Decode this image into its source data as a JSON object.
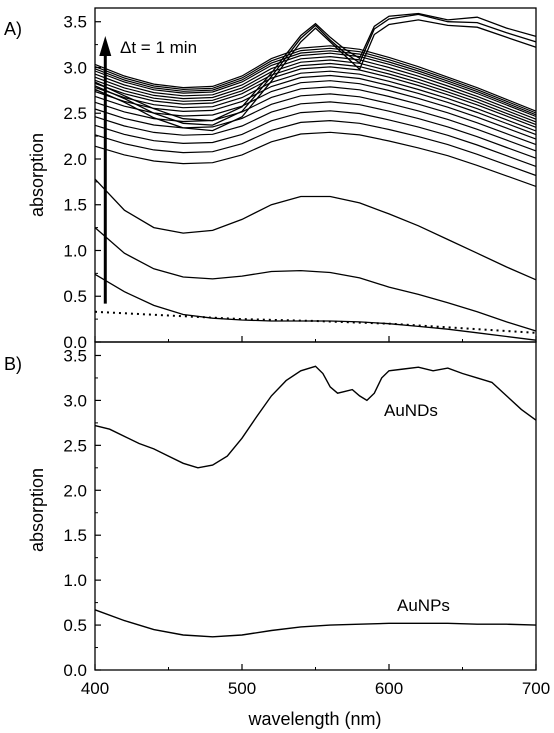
{
  "chart_data": [
    {
      "panel": "A)",
      "type": "line",
      "ylabel": "absorption",
      "xlim": [
        400,
        700
      ],
      "ylim": [
        0,
        3.65
      ],
      "yticks": [
        "0.0",
        "0.5",
        "1.0",
        "1.5",
        "2.0",
        "2.5",
        "3.0",
        "3.5"
      ],
      "annotation": "Δt = 1 min",
      "base_shape": {
        "x": [
          400,
          420,
          440,
          460,
          480,
          500,
          520,
          540,
          560,
          580,
          600,
          620,
          640,
          660,
          680,
          700
        ],
        "y": [
          0.6,
          0.5,
          0.43,
          0.4,
          0.41,
          0.5,
          0.65,
          0.74,
          0.76,
          0.73,
          0.66,
          0.58,
          0.49,
          0.4,
          0.3,
          0.2
        ]
      },
      "series": [
        {
          "x": [
            400,
            420,
            440,
            460,
            480,
            500,
            520,
            540,
            560,
            580,
            600,
            620,
            640,
            660,
            680,
            700
          ],
          "y": [
            0.74,
            0.55,
            0.4,
            0.3,
            0.26,
            0.24,
            0.23,
            0.23,
            0.23,
            0.22,
            0.2,
            0.17,
            0.14,
            0.1,
            0.06,
            0.02
          ]
        },
        {
          "x": [
            400,
            420,
            440,
            460,
            480,
            500,
            520,
            540,
            560,
            580,
            600,
            620,
            640,
            660,
            680,
            700
          ],
          "y": [
            1.25,
            0.97,
            0.8,
            0.71,
            0.69,
            0.72,
            0.77,
            0.78,
            0.76,
            0.7,
            0.6,
            0.52,
            0.43,
            0.33,
            0.22,
            0.12
          ]
        },
        {
          "x": [
            400,
            420,
            440,
            460,
            480,
            500,
            520,
            540,
            560,
            580,
            600,
            620,
            640,
            660,
            680,
            700
          ],
          "y": [
            1.78,
            1.44,
            1.25,
            1.19,
            1.22,
            1.34,
            1.5,
            1.59,
            1.59,
            1.52,
            1.4,
            1.27,
            1.12,
            0.97,
            0.82,
            0.68
          ]
        }
      ],
      "family_levels": [
        1.95,
        2.07,
        2.17,
        2.26,
        2.34,
        2.41,
        2.47,
        2.52,
        2.56,
        2.6,
        2.63,
        2.66,
        2.69,
        2.72,
        2.74,
        2.76,
        2.78
      ],
      "top_curves": [
        {
          "x": [
            400,
            420,
            440,
            460,
            480,
            500,
            520,
            540,
            550,
            560,
            570,
            580,
            590,
            600,
            620,
            640,
            660,
            680,
            700
          ],
          "y": [
            2.76,
            2.62,
            2.45,
            2.34,
            2.31,
            2.46,
            2.85,
            3.28,
            3.43,
            3.28,
            3.13,
            2.98,
            3.36,
            3.47,
            3.52,
            3.46,
            3.44,
            3.33,
            3.22
          ]
        },
        {
          "x": [
            400,
            420,
            440,
            460,
            480,
            500,
            520,
            540,
            550,
            560,
            570,
            580,
            590,
            600,
            620,
            640,
            660,
            680,
            700
          ],
          "y": [
            2.8,
            2.66,
            2.5,
            2.39,
            2.37,
            2.52,
            2.9,
            3.32,
            3.46,
            3.3,
            3.16,
            3.05,
            3.42,
            3.53,
            3.58,
            3.5,
            3.49,
            3.38,
            3.28
          ]
        },
        {
          "x": [
            400,
            420,
            440,
            460,
            480,
            500,
            520,
            540,
            550,
            560,
            570,
            580,
            590,
            600,
            620,
            640,
            660,
            680,
            700
          ],
          "y": [
            2.84,
            2.69,
            2.55,
            2.44,
            2.42,
            2.57,
            2.94,
            3.35,
            3.48,
            3.33,
            3.2,
            3.1,
            3.45,
            3.56,
            3.59,
            3.52,
            3.55,
            3.43,
            3.34
          ]
        }
      ],
      "dotted_series": {
        "x": [
          400,
          450,
          500,
          550,
          600,
          650,
          700
        ],
        "y": [
          0.33,
          0.29,
          0.25,
          0.23,
          0.2,
          0.15,
          0.1
        ]
      },
      "arrow": {
        "x": 407,
        "y_from": 0.42,
        "y_to": 3.3
      }
    },
    {
      "panel": "B)",
      "type": "line",
      "ylabel": "absorption",
      "xlabel": "wavelength (nm)",
      "xlim": [
        400,
        700
      ],
      "ylim": [
        0,
        3.65
      ],
      "xticks": [
        "400",
        "500",
        "600",
        "700"
      ],
      "yticks": [
        "0.0",
        "0.5",
        "1.0",
        "1.5",
        "2.0",
        "2.5",
        "3.0",
        "3.5"
      ],
      "series": [
        {
          "name": "AuNDs",
          "x": [
            400,
            410,
            420,
            430,
            440,
            450,
            460,
            470,
            480,
            490,
            500,
            510,
            520,
            530,
            540,
            550,
            555,
            560,
            565,
            570,
            575,
            580,
            585,
            590,
            595,
            600,
            610,
            620,
            630,
            640,
            650,
            660,
            670,
            680,
            690,
            700
          ],
          "y": [
            2.72,
            2.68,
            2.6,
            2.52,
            2.46,
            2.38,
            2.3,
            2.25,
            2.28,
            2.38,
            2.58,
            2.82,
            3.05,
            3.22,
            3.33,
            3.38,
            3.3,
            3.15,
            3.08,
            3.1,
            3.12,
            3.05,
            3.0,
            3.08,
            3.25,
            3.33,
            3.35,
            3.37,
            3.33,
            3.36,
            3.3,
            3.25,
            3.2,
            3.05,
            2.9,
            2.78
          ]
        },
        {
          "name": "AuNPs",
          "x": [
            400,
            420,
            440,
            460,
            480,
            500,
            520,
            540,
            560,
            580,
            600,
            620,
            640,
            660,
            680,
            700
          ],
          "y": [
            0.67,
            0.55,
            0.45,
            0.39,
            0.37,
            0.39,
            0.44,
            0.48,
            0.5,
            0.51,
            0.52,
            0.52,
            0.52,
            0.51,
            0.51,
            0.5
          ]
        }
      ]
    }
  ]
}
